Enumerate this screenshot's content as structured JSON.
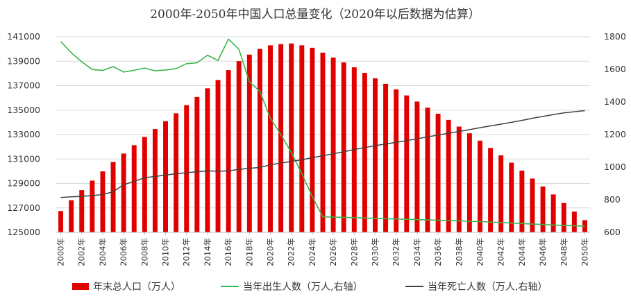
{
  "chart_data": {
    "type": "bar",
    "title": "2000年-2050年中国人口总量变化（2020年以后数据为估算）",
    "categories": [
      "2000年",
      "2001年",
      "2002年",
      "2003年",
      "2004年",
      "2005年",
      "2006年",
      "2007年",
      "2008年",
      "2009年",
      "2010年",
      "2011年",
      "2012年",
      "2013年",
      "2014年",
      "2015年",
      "2016年",
      "2017年",
      "2018年",
      "2019年",
      "2020年",
      "2021年",
      "2022年",
      "2023年",
      "2024年",
      "2025年",
      "2026年",
      "2027年",
      "2028年",
      "2029年",
      "2030年",
      "2031年",
      "2032年",
      "2033年",
      "2034年",
      "2035年",
      "2036年",
      "2037年",
      "2038年",
      "2039年",
      "2040年",
      "2041年",
      "2042年",
      "2043年",
      "2044年",
      "2045年",
      "2046年",
      "2047年",
      "2048年",
      "2049年",
      "2050年"
    ],
    "x_tick_labels": [
      "2000年",
      "2002年",
      "2004年",
      "2006年",
      "2008年",
      "2010年",
      "2012年",
      "2014年",
      "2016年",
      "2018年",
      "2020年",
      "2022年",
      "2024年",
      "2026年",
      "2028年",
      "2030年",
      "2032年",
      "2034年",
      "2036年",
      "2038年",
      "2040年",
      "2042年",
      "2044年",
      "2046年",
      "2048年",
      "2050年"
    ],
    "left_axis": {
      "ylim": [
        125000,
        141000
      ],
      "ticks": [
        "141000",
        "139000",
        "137000",
        "135000",
        "133000",
        "131000",
        "129000",
        "127000",
        "125000"
      ]
    },
    "right_axis": {
      "ylim": [
        600,
        1800
      ],
      "ticks": [
        "1800",
        "1600",
        "1400",
        "1200",
        "1000",
        "800",
        "600"
      ]
    },
    "grid": true,
    "legend_position": "bottom",
    "series": [
      {
        "name": "年末总人口（万人）",
        "kind": "bar",
        "axis": "left",
        "color": "#e00000",
        "values": [
          126743,
          127627,
          128453,
          129227,
          129988,
          130756,
          131448,
          132129,
          132802,
          133450,
          134091,
          134735,
          135404,
          136072,
          136782,
          137462,
          138271,
          139008,
          139538,
          140005,
          140300,
          140400,
          140450,
          140300,
          140100,
          139700,
          139300,
          138900,
          138500,
          138050,
          137600,
          137150,
          136700,
          136200,
          135700,
          135200,
          134700,
          134200,
          133650,
          133100,
          132500,
          131900,
          131300,
          130700,
          130050,
          129400,
          128750,
          128100,
          127400,
          126700,
          126000
        ]
      },
      {
        "name": "当年出生人数（万人,右轴）",
        "kind": "line",
        "axis": "right",
        "color": "#3cb44b",
        "values": [
          1771,
          1702,
          1647,
          1599,
          1593,
          1617,
          1584,
          1594,
          1608,
          1591,
          1596,
          1604,
          1635,
          1640,
          1687,
          1655,
          1786,
          1723,
          1523,
          1465,
          1300,
          1200,
          1090,
          960,
          820,
          695,
          693,
          692,
          690,
          688,
          686,
          684,
          682,
          680,
          678,
          676,
          674,
          672,
          670,
          668,
          666,
          663,
          660,
          657,
          654,
          651,
          648,
          645,
          642,
          640,
          638
        ]
      },
      {
        "name": "当年死亡人数（万人,右轴）",
        "kind": "line",
        "axis": "right",
        "color": "#404040",
        "values": [
          814,
          818,
          821,
          825,
          832,
          849,
          892,
          913,
          935,
          943,
          951,
          960,
          966,
          972,
          977,
          975,
          977,
          986,
          993,
          998,
          1015,
          1025,
          1035,
          1045,
          1058,
          1070,
          1082,
          1094,
          1108,
          1120,
          1132,
          1142,
          1152,
          1163,
          1174,
          1186,
          1197,
          1208,
          1219,
          1230,
          1242,
          1253,
          1264,
          1275,
          1287,
          1300,
          1311,
          1322,
          1333,
          1340,
          1347
        ]
      }
    ]
  }
}
